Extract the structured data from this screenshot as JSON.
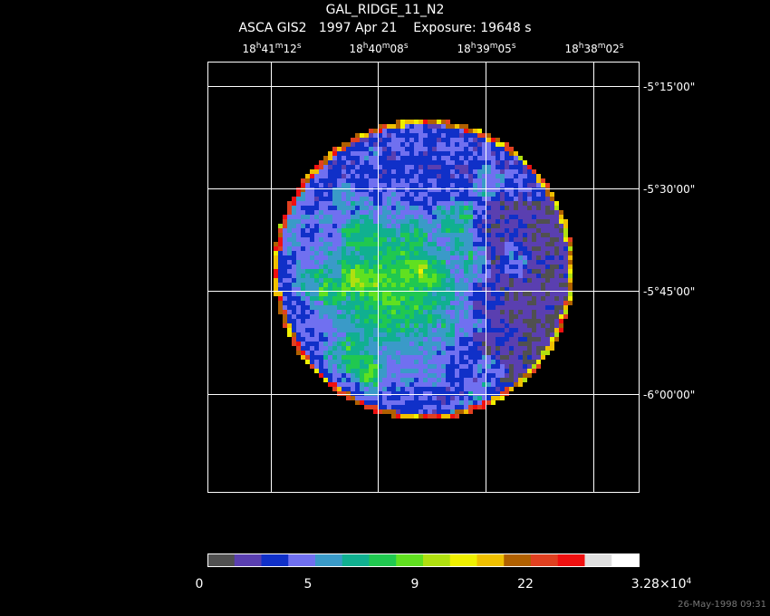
{
  "header": {
    "title": "GAL_RIDGE_11_N2",
    "subtitle": "ASCA GIS2   1997 Apr 21    Exposure: 19648 s"
  },
  "ra_labels": [
    {
      "parts": [
        "18",
        "h",
        "41",
        "m",
        "12",
        "s"
      ]
    },
    {
      "parts": [
        "18",
        "h",
        "40",
        "m",
        "08",
        "s"
      ]
    },
    {
      "parts": [
        "18",
        "h",
        "39",
        "m",
        "05",
        "s"
      ]
    },
    {
      "parts": [
        "18",
        "h",
        "38",
        "m",
        "02",
        "s"
      ]
    }
  ],
  "dec_labels": [
    "-5°15'00\"",
    "-5°30'00\"",
    "-5°45'00\"",
    "-6°00'00\""
  ],
  "colorbar": {
    "labels": [
      {
        "parts": [
          "0"
        ]
      },
      {
        "parts": [
          "5"
        ]
      },
      {
        "parts": [
          "9"
        ]
      },
      {
        "parts": [
          "22"
        ]
      },
      {
        "parts": [
          "3.28×10",
          "4"
        ]
      }
    ]
  },
  "footer": {
    "timestamp": "26-May-1998 09:31"
  }
}
